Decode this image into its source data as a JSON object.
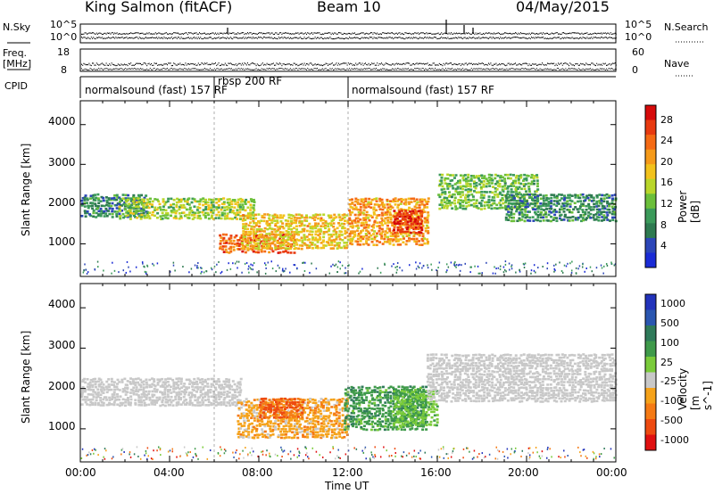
{
  "header": {
    "title": "King Salmon (fitACF)",
    "beam": "Beam 10",
    "date": "04/May/2015"
  },
  "panels": {
    "nsky_label": "N.Sky",
    "nsearch_label": "N.Search",
    "freq_label": "Freq.",
    "freq_unit": "[MHz]",
    "nave_label": "Nave",
    "cpid_label": "CPID",
    "nsky_ticks": [
      "10^5",
      "10^0"
    ],
    "nsearch_ticks": [
      "10^5",
      "10^0"
    ],
    "freq_ticks": [
      "18",
      "8"
    ],
    "nave_ticks": [
      "60",
      "0"
    ]
  },
  "cpid": {
    "left": "normalsound (fast) 157 RF",
    "middle": "rbsp 200 RF",
    "right": "normalsound (fast) 157 RF"
  },
  "axes": {
    "xlabel": "Time UT",
    "ylabel": "Slant Range [km]",
    "xticks": [
      "00:00",
      "04:00",
      "08:00",
      "12:00",
      "16:00",
      "20:00",
      "00:00"
    ],
    "yticks": [
      "1000",
      "2000",
      "3000",
      "4000"
    ]
  },
  "colorbars": {
    "power": {
      "label": "Power [dB]",
      "ticks": [
        "4",
        "8",
        "12",
        "16",
        "20",
        "24",
        "28"
      ],
      "colors": [
        "#1a2bd6",
        "#2c46b8",
        "#2e7a50",
        "#3b9a5a",
        "#6bbf3a",
        "#b9d62a",
        "#f2c21c",
        "#f59a1a",
        "#f56a14",
        "#e83a10",
        "#d60a0a"
      ]
    },
    "velocity": {
      "label": "Velocity [m s^-1]",
      "ticks": [
        "1000",
        "500",
        "100",
        "25",
        "-25",
        "-100",
        "-500",
        "-1000"
      ],
      "colors": [
        "#2233bb",
        "#2a56b0",
        "#2f7a5a",
        "#3f9a4a",
        "#7acb3a",
        "#c8c8c8",
        "#f5a21a",
        "#f57a14",
        "#ee4a10",
        "#e01010"
      ]
    }
  },
  "chart_data": [
    {
      "type": "heatmap",
      "title": "Power",
      "xlabel": "Time UT",
      "ylabel": "Slant Range [km]",
      "xlim": [
        0,
        24
      ],
      "ylim": [
        180,
        4600
      ],
      "colorbar_label": "Power [dB]",
      "colorbar_range": [
        0,
        30
      ],
      "bands": [
        {
          "t0": 0.0,
          "t1": 3.0,
          "r0": 1700,
          "r1": 2300,
          "value": 8
        },
        {
          "t0": 1.7,
          "t1": 7.8,
          "r0": 1650,
          "r1": 2200,
          "value": 14
        },
        {
          "t0": 6.2,
          "t1": 9.6,
          "r0": 800,
          "r1": 1300,
          "value": 24
        },
        {
          "t0": 7.2,
          "t1": 12.0,
          "r0": 900,
          "r1": 1800,
          "value": 18
        },
        {
          "t0": 12.0,
          "t1": 15.6,
          "r0": 1000,
          "r1": 2200,
          "value": 20
        },
        {
          "t0": 14.0,
          "t1": 15.3,
          "r0": 1300,
          "r1": 1900,
          "value": 26
        },
        {
          "t0": 16.0,
          "t1": 20.5,
          "r0": 1900,
          "r1": 2800,
          "value": 12
        },
        {
          "t0": 19.0,
          "t1": 24.0,
          "r0": 1600,
          "r1": 2300,
          "value": 8
        }
      ]
    },
    {
      "type": "heatmap",
      "title": "Velocity",
      "xlabel": "Time UT",
      "ylabel": "Slant Range [km]",
      "xlim": [
        0,
        24
      ],
      "ylim": [
        180,
        4600
      ],
      "colorbar_label": "Velocity [m s^-1]",
      "colorbar_range": [
        -1000,
        1000
      ],
      "bands": [
        {
          "t0": 0.0,
          "t1": 7.2,
          "r0": 1600,
          "r1": 2300,
          "value": 0
        },
        {
          "t0": 7.0,
          "t1": 12.0,
          "r0": 800,
          "r1": 1800,
          "value": -300
        },
        {
          "t0": 8.0,
          "t1": 10.0,
          "r0": 1300,
          "r1": 1800,
          "value": -600
        },
        {
          "t0": 11.8,
          "t1": 15.5,
          "r0": 1000,
          "r1": 2100,
          "value": 300
        },
        {
          "t0": 14.0,
          "t1": 16.0,
          "r0": 1100,
          "r1": 2000,
          "value": 150
        },
        {
          "t0": 15.5,
          "t1": 24.0,
          "r0": 1700,
          "r1": 2900,
          "value": 0
        }
      ]
    }
  ]
}
